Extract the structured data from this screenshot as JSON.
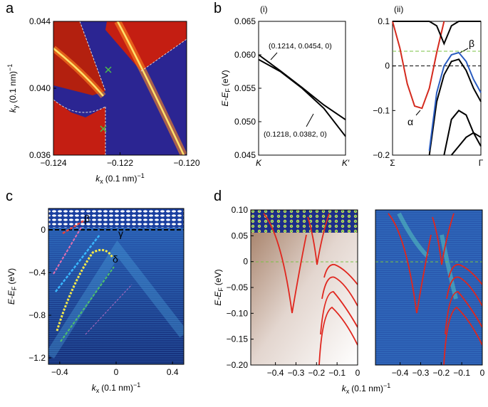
{
  "chart_data": [
    {
      "type": "heatmap",
      "panel": "a",
      "xlim": [
        -0.124,
        -0.12
      ],
      "xticks": [
        {
          "value": -0.124,
          "label": "−0.124"
        },
        {
          "value": -0.122,
          "label": "−0.122"
        },
        {
          "value": -0.12,
          "label": "−0.120"
        }
      ],
      "ylim": [
        0.036,
        0.044
      ],
      "yticks": [
        0.036,
        {
          "value": 0.04,
          "label": "0.040"
        },
        0.044
      ],
      "xlabel": {
        "text": "k",
        "sub": "x",
        "unit": "(0.1 nm)",
        "sup": "−1"
      },
      "ylabel": {
        "text": "k",
        "sub": "y",
        "unit": "(0.1 nm)",
        "sup": "−1"
      }
    },
    {
      "type": "line",
      "panel": "b",
      "subpanel": "(i)",
      "categories": [
        "K",
        null,
        null,
        null,
        "K′"
      ],
      "series": [
        {
          "color": "#000000",
          "values": [
            0.0593,
            0.0575,
            0.055,
            0.052,
            0.0478
          ]
        },
        {
          "color": "#000000",
          "values": [
            0.06,
            0.0576,
            0.0551,
            0.0525,
            0.0503
          ]
        }
      ],
      "ylim": [
        0.045,
        0.065
      ],
      "yticks": [
        0.045,
        {
          "value": 0.05,
          "label": "0.050"
        },
        0.055,
        {
          "value": 0.06,
          "label": "0.060"
        },
        0.065
      ],
      "ylabel": {
        "text": "E-E",
        "sub": "F",
        "unit": "(eV)"
      },
      "annotations": [
        {
          "text": "(0.1214, 0.0454, 0)",
          "color": "#000000"
        },
        {
          "text": "(0.1218, 0.0382, 0)",
          "color": "#000000"
        }
      ]
    },
    {
      "type": "line",
      "subpanel": "(ii)",
      "categories": [
        "Σ",
        null,
        null,
        null,
        null,
        null,
        null,
        null,
        null,
        null,
        null,
        null,
        "Γ"
      ],
      "series": [
        {
          "color": "#d42a1e",
          "values": [
            0.1,
            0.04,
            -0.04,
            -0.09,
            -0.095,
            -0.05,
            0.03,
            0.1,
            null,
            null,
            null,
            null,
            null
          ]
        },
        {
          "color": "#000000",
          "values": [
            0.1,
            0.1,
            0.1,
            0.1,
            0.1,
            0.1,
            0.09,
            0.05,
            0.09,
            0.1,
            0.1,
            0.1,
            0.1
          ]
        },
        {
          "color": "#000000",
          "values": [
            null,
            null,
            null,
            null,
            null,
            -0.2,
            -0.08,
            -0.02,
            0.01,
            0.015,
            -0.01,
            -0.05,
            -0.08
          ]
        },
        {
          "color": "#2a5cc0",
          "values": [
            null,
            null,
            null,
            null,
            null,
            -0.19,
            -0.06,
            0.0,
            0.025,
            0.03,
            0.01,
            -0.03,
            -0.06
          ]
        },
        {
          "color": "#000000",
          "values": [
            null,
            null,
            null,
            null,
            null,
            null,
            null,
            -0.2,
            -0.12,
            -0.1,
            -0.11,
            -0.15,
            -0.18
          ]
        },
        {
          "color": "#000000",
          "values": [
            null,
            null,
            null,
            null,
            null,
            null,
            null,
            null,
            -0.2,
            -0.18,
            -0.16,
            -0.15,
            -0.16
          ]
        }
      ],
      "hlines": [
        {
          "value": 0.033,
          "color": "#7ac143"
        },
        {
          "value": 0,
          "color": "#000000"
        }
      ],
      "ylim": [
        -0.2,
        0.1
      ],
      "yticks": [
        {
          "value": -0.2,
          "label": "−0.2"
        },
        {
          "value": -0.1,
          "label": "−0.1"
        },
        0,
        0.1
      ],
      "annotations": [
        {
          "text": "α",
          "color": "#000000"
        },
        {
          "text": "β",
          "color": "#000000"
        }
      ]
    },
    {
      "type": "heatmap",
      "panel": "c",
      "xlim": [
        -0.48,
        0.48
      ],
      "xticks": [
        {
          "value": -0.4,
          "label": "−0.4"
        },
        0,
        0.4
      ],
      "ylim": [
        -1.26,
        0.2
      ],
      "yticks": [
        0,
        {
          "value": -0.4,
          "label": "−0.4"
        },
        {
          "value": -0.8,
          "label": "−0.8"
        },
        {
          "value": -1.2,
          "label": "−1.2"
        }
      ],
      "xlabel": {
        "text": "k",
        "sub": "x",
        "unit": "(0.1 nm)",
        "sup": "−1"
      },
      "ylabel": {
        "text": "E-E",
        "sub": "F",
        "unit": "(eV)"
      },
      "annotations": [
        {
          "text": "β",
          "color": "#ff7b9c"
        },
        {
          "text": "γ",
          "color": "#39b8ff"
        },
        {
          "text": "δ",
          "color": "#f3e84a"
        }
      ]
    },
    {
      "type": "heatmap",
      "panel": "d",
      "xlim": [
        -0.52,
        0
      ],
      "xticks": [
        {
          "value": -0.4,
          "label": "−0.4"
        },
        {
          "value": -0.3,
          "label": "−0.3"
        },
        {
          "value": -0.2,
          "label": "−0.2"
        },
        {
          "value": -0.1,
          "label": "−0.1"
        },
        0
      ],
      "ylim": [
        -0.2,
        0.1
      ],
      "yticks": [
        {
          "value": 0.1,
          "label": "0.10"
        },
        {
          "value": 0.05,
          "label": "0.05"
        },
        0,
        {
          "value": -0.05,
          "label": "−0.05"
        },
        {
          "value": -0.1,
          "label": "−0.10"
        },
        {
          "value": -0.15,
          "label": "−0.15"
        },
        {
          "value": -0.2,
          "label": "−0.20"
        }
      ],
      "xlabel": {
        "text": "k",
        "sub": "x",
        "unit": "(0.1 nm)",
        "sup": "−1"
      },
      "ylabel": {
        "text": "E-E",
        "sub": "F",
        "unit": "(eV)"
      }
    },
    {
      "type": "heatmap",
      "xlim": [
        -0.52,
        0
      ],
      "xticks": [
        {
          "value": -0.4,
          "label": "−0.4"
        },
        {
          "value": -0.3,
          "label": "−0.3"
        },
        {
          "value": -0.2,
          "label": "−0.2"
        },
        {
          "value": -0.1,
          "label": "−0.1"
        },
        0
      ],
      "ylim": [
        -0.2,
        0.1
      ]
    }
  ]
}
